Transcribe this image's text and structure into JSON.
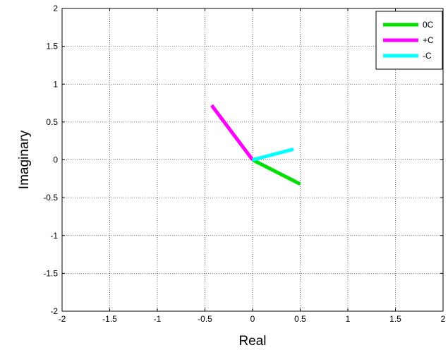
{
  "chart_data": {
    "type": "line",
    "title": "",
    "xlabel": "Real",
    "ylabel": "Imaginary",
    "xlim": [
      -2,
      2
    ],
    "ylim": [
      -2,
      2
    ],
    "xticks": [
      "-2",
      "-1.5",
      "-1",
      "-0.5",
      "0",
      "0.5",
      "1",
      "1.5",
      "2"
    ],
    "yticks": [
      "-2",
      "-1.5",
      "-1",
      "-0.5",
      "0",
      "0.5",
      "1",
      "1.5",
      "2"
    ],
    "grid": true,
    "legend": {
      "position": "top-right"
    },
    "series": [
      {
        "name": "0C",
        "color": "#00e000",
        "x": [
          0,
          0.5
        ],
        "y": [
          0,
          -0.32
        ]
      },
      {
        "name": "+C",
        "color": "#ff00ff",
        "x": [
          0,
          -0.43
        ],
        "y": [
          0,
          0.72
        ]
      },
      {
        "name": "-C",
        "color": "#00ffff",
        "x": [
          0,
          0.43
        ],
        "y": [
          0,
          0.14
        ]
      }
    ]
  }
}
